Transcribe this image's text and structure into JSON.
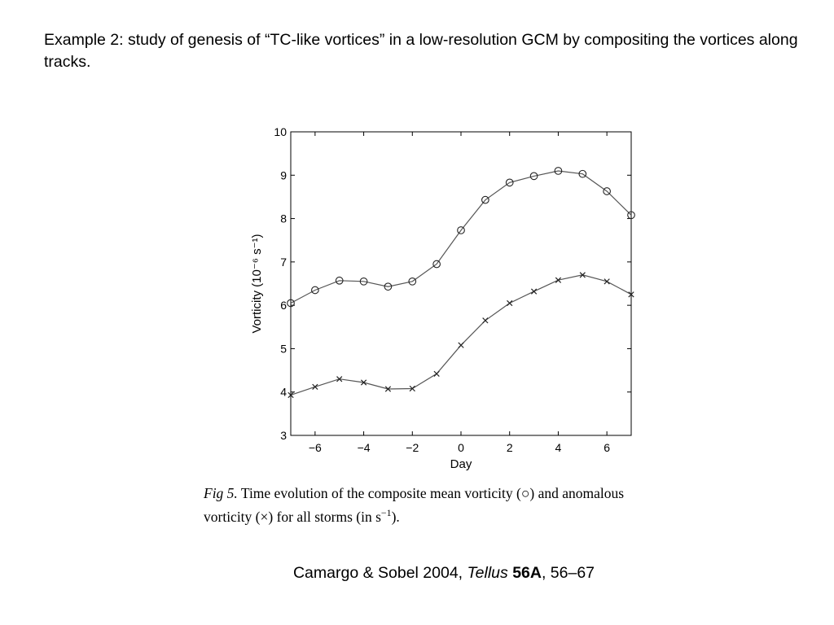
{
  "slide": {
    "heading": "Example 2:  study of genesis of “TC-like vortices” in a low-resolution GCM by compositing the vortices along tracks.",
    "citation": {
      "authors": "Camargo & Sobel 2004, ",
      "journal": "Tellus",
      "volume": "56A",
      "pages": ", 56–67"
    }
  },
  "caption": {
    "fig_label": "Fig 5.",
    "text_part1": " Time evolution of the composite mean vorticity (",
    "mean_symbol": "○",
    "text_part2": ") and anomalous vorticity (",
    "anomaly_symbol": "×",
    "text_part3": ") for all storms (in s",
    "unit_superscript": "−1",
    "text_part4": ")."
  },
  "chart_data": {
    "type": "line",
    "xlabel": "Day",
    "ylabel": "Vorticity (10⁻⁶ s⁻¹)",
    "xlim": [
      -7,
      7
    ],
    "ylim": [
      3,
      10
    ],
    "x_ticks": [
      -6,
      -4,
      -2,
      0,
      2,
      4,
      6
    ],
    "x_tick_labels": [
      "−6",
      "−4",
      "−2",
      "0",
      "2",
      "4",
      "6"
    ],
    "y_ticks": [
      3,
      4,
      5,
      6,
      7,
      8,
      9,
      10
    ],
    "y_tick_labels": [
      "3",
      "4",
      "5",
      "6",
      "7",
      "8",
      "9",
      "10"
    ],
    "grid": false,
    "x": [
      -7,
      -6,
      -5,
      -4,
      -3,
      -2,
      -1,
      0,
      1,
      2,
      3,
      4,
      5,
      6,
      7
    ],
    "series": [
      {
        "marker": "circle",
        "values": [
          6.05,
          6.35,
          6.57,
          6.55,
          6.43,
          6.55,
          6.95,
          7.73,
          8.43,
          8.83,
          8.98,
          9.1,
          9.03,
          8.63,
          8.08
        ]
      },
      {
        "marker": "x",
        "values": [
          3.93,
          4.12,
          4.3,
          4.22,
          4.07,
          4.08,
          4.42,
          5.08,
          5.65,
          6.05,
          6.32,
          6.58,
          6.7,
          6.55,
          6.25
        ]
      }
    ],
    "colors": {
      "line": "#555555",
      "axis": "#000000"
    }
  }
}
